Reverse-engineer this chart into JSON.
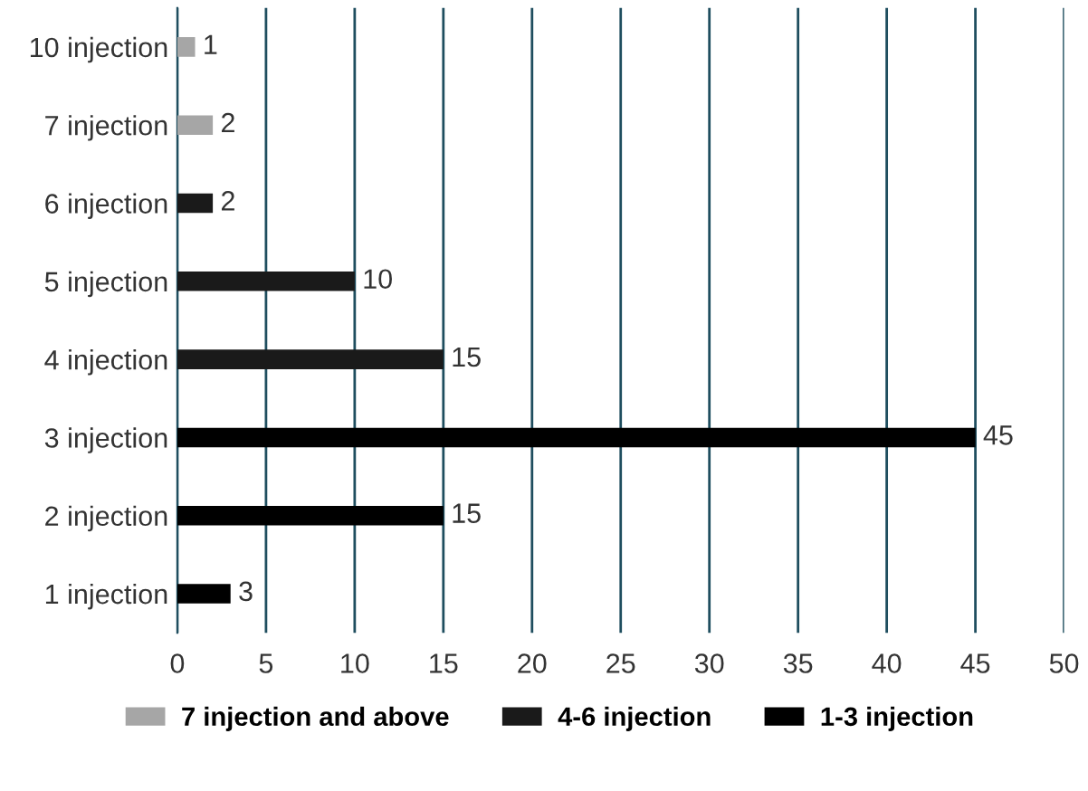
{
  "chart_data": {
    "type": "bar",
    "orientation": "horizontal",
    "categories": [
      "10 injection",
      "7 injection",
      "6 injection",
      "5 injection",
      "4 injection",
      "3 injection",
      "2 injection",
      "1 injection"
    ],
    "series": [
      {
        "name": "7 injection and above",
        "color": "#a6a6a6",
        "values": [
          1,
          2,
          null,
          null,
          null,
          null,
          null,
          null
        ]
      },
      {
        "name": "4-6 injection",
        "color": "#1a1a1a",
        "values": [
          null,
          null,
          2,
          10,
          15,
          null,
          null,
          null
        ]
      },
      {
        "name": "1-3 injection",
        "color": "#000000",
        "values": [
          null,
          null,
          null,
          null,
          null,
          45,
          15,
          3
        ]
      }
    ],
    "xlim": [
      0,
      50
    ],
    "xticks": [
      0,
      5,
      10,
      15,
      20,
      25,
      30,
      35,
      40,
      45,
      50
    ],
    "grid": "x",
    "legend": "bottom",
    "data_labels": true
  }
}
